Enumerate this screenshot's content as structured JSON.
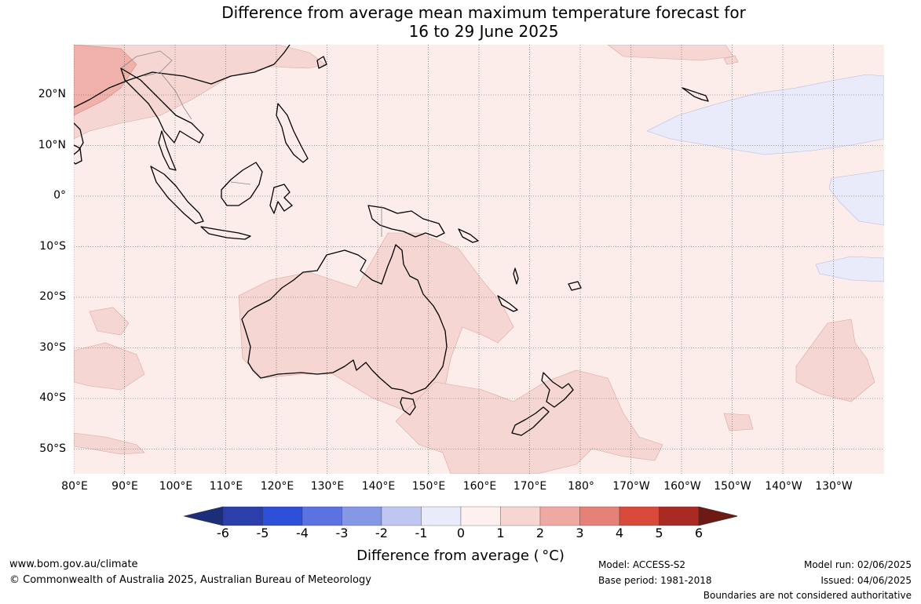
{
  "title": {
    "line1": "Difference from average mean maximum temperature forecast for",
    "line2": "16 to 29 June 2025"
  },
  "map": {
    "lat_labels": [
      "20°N",
      "10°N",
      "0°",
      "10°S",
      "20°S",
      "30°S",
      "40°S",
      "50°S"
    ],
    "lon_labels": [
      "80°E",
      "90°E",
      "100°E",
      "110°E",
      "120°E",
      "130°E",
      "140°E",
      "150°E",
      "160°E",
      "170°E",
      "180°",
      "170°W",
      "160°W",
      "150°W",
      "140°W",
      "130°W"
    ],
    "colors": {
      "background_0_1": "#fcecea",
      "anomaly_1_2": "#f5d6d3",
      "anomaly_2_3": "#efb1aa",
      "anomaly_minus1_0": "#e9eafa",
      "coastline": "#000000",
      "borders": "#888888",
      "grid": "#555555"
    }
  },
  "colorbar": {
    "ticks": [
      "-6",
      "-5",
      "-4",
      "-3",
      "-2",
      "-1",
      "0",
      "1",
      "2",
      "3",
      "4",
      "5",
      "6"
    ],
    "colors": [
      "#1c2e7a",
      "#2a3faa",
      "#2e50d9",
      "#5a73e0",
      "#8598e6",
      "#bfc6f2",
      "#e9eafa",
      "#fdf0ee",
      "#f7d6d2",
      "#eeaaa2",
      "#e58177",
      "#d94a3b",
      "#a82a22",
      "#6e1a14"
    ],
    "label": "Difference from average ( °C)"
  },
  "footer": {
    "url": "www.bom.gov.au/climate",
    "copyright": "© Commonwealth of Australia 2025, Australian Bureau of Meteorology",
    "model": "Model: ACCESS-S2",
    "base_period": "Base period: 1981-2018",
    "model_run": "Model run: 02/06/2025",
    "issued": "Issued: 04/06/2025",
    "disclaimer": "Boundaries are not considered authoritative"
  }
}
